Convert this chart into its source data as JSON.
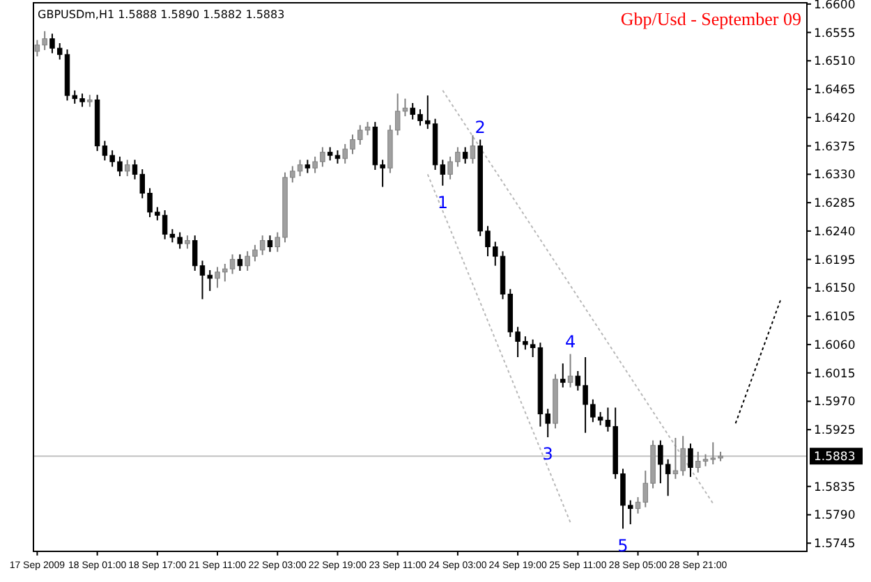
{
  "chart_data": {
    "type": "candlestick",
    "title": "Gbp/Usd - September 09",
    "annotations": [
      "GBPUSDm,H1 1.5888 1.5890 1.5882 1.5883",
      {
        "text": "1",
        "y": 1.6312
      },
      {
        "text": "2",
        "y": 1.6385
      },
      {
        "text": "3",
        "y": 1.5913
      },
      {
        "text": "4",
        "y": 1.6045
      },
      {
        "text": "5",
        "y": 1.5768
      }
    ],
    "categories": [
      "17 Sep 2009",
      null,
      null,
      null,
      null,
      null,
      null,
      null,
      "18 Sep 01:00",
      null,
      null,
      null,
      null,
      null,
      null,
      null,
      "18 Sep 17:00",
      null,
      null,
      null,
      null,
      null,
      null,
      null,
      "21 Sep 11:00",
      null,
      null,
      null,
      null,
      null,
      null,
      null,
      "22 Sep 03:00",
      null,
      null,
      null,
      null,
      null,
      null,
      null,
      "22 Sep 19:00",
      null,
      null,
      null,
      null,
      null,
      null,
      null,
      "23 Sep 11:00",
      null,
      null,
      null,
      null,
      null,
      null,
      null,
      "24 Sep 03:00",
      null,
      null,
      null,
      null,
      null,
      null,
      null,
      "24 Sep 19:00",
      null,
      null,
      null,
      null,
      null,
      null,
      null,
      "25 Sep 11:00",
      null,
      null,
      null,
      null,
      null,
      null,
      null,
      "28 Sep 05:00",
      null,
      null,
      null,
      null,
      null,
      null,
      null,
      "28 Sep 21:00",
      null,
      null,
      null,
      null,
      null,
      null,
      null,
      null,
      null,
      null,
      null,
      null,
      null,
      null
    ],
    "ohlc": [
      [
        1.6525,
        1.6543,
        1.6517,
        1.6535
      ],
      [
        1.6535,
        1.6557,
        1.6527,
        1.6545
      ],
      [
        1.6545,
        1.6553,
        1.6522,
        1.653
      ],
      [
        1.653,
        1.6538,
        1.6512,
        1.652
      ],
      [
        1.652,
        1.6528,
        1.6447,
        1.6455
      ],
      [
        1.6455,
        1.6463,
        1.6442,
        1.645
      ],
      [
        1.645,
        1.6458,
        1.6437,
        1.6445
      ],
      [
        1.6445,
        1.6456,
        1.6437,
        1.6448
      ],
      [
        1.6448,
        1.6456,
        1.6367,
        1.6375
      ],
      [
        1.6375,
        1.6383,
        1.6352,
        1.636
      ],
      [
        1.636,
        1.6368,
        1.6342,
        1.635
      ],
      [
        1.635,
        1.6358,
        1.6327,
        1.6335
      ],
      [
        1.6335,
        1.6353,
        1.6327,
        1.6345
      ],
      [
        1.6345,
        1.6353,
        1.6322,
        1.633
      ],
      [
        1.633,
        1.6338,
        1.6292,
        1.63
      ],
      [
        1.63,
        1.6308,
        1.6262,
        1.627
      ],
      [
        1.627,
        1.6278,
        1.6257,
        1.6265
      ],
      [
        1.6265,
        1.6273,
        1.6227,
        1.6235
      ],
      [
        1.6235,
        1.6243,
        1.6222,
        1.623
      ],
      [
        1.623,
        1.6238,
        1.6212,
        1.622
      ],
      [
        1.622,
        1.6233,
        1.6212,
        1.6225
      ],
      [
        1.6225,
        1.6233,
        1.6177,
        1.6185
      ],
      [
        1.6185,
        1.6193,
        1.6132,
        1.617
      ],
      [
        1.617,
        1.6178,
        1.6145,
        1.6165
      ],
      [
        1.6165,
        1.6183,
        1.615,
        1.6175
      ],
      [
        1.6175,
        1.6188,
        1.616,
        1.618
      ],
      [
        1.618,
        1.6203,
        1.6172,
        1.6195
      ],
      [
        1.6195,
        1.6203,
        1.6177,
        1.6185
      ],
      [
        1.6185,
        1.6208,
        1.6177,
        1.62
      ],
      [
        1.62,
        1.6218,
        1.6192,
        1.621
      ],
      [
        1.621,
        1.6233,
        1.6202,
        1.6225
      ],
      [
        1.6225,
        1.6233,
        1.6207,
        1.6215
      ],
      [
        1.6215,
        1.6238,
        1.6207,
        1.623
      ],
      [
        1.623,
        1.6333,
        1.6222,
        1.6325
      ],
      [
        1.6325,
        1.6343,
        1.6317,
        1.6335
      ],
      [
        1.6335,
        1.6353,
        1.6327,
        1.6345
      ],
      [
        1.6345,
        1.6353,
        1.6332,
        1.634
      ],
      [
        1.634,
        1.6358,
        1.6332,
        1.635
      ],
      [
        1.635,
        1.6373,
        1.6342,
        1.6365
      ],
      [
        1.6365,
        1.6373,
        1.6352,
        1.636
      ],
      [
        1.636,
        1.6368,
        1.6347,
        1.6355
      ],
      [
        1.6355,
        1.6378,
        1.6347,
        1.637
      ],
      [
        1.637,
        1.6393,
        1.6362,
        1.6385
      ],
      [
        1.6385,
        1.6408,
        1.6377,
        1.64
      ],
      [
        1.64,
        1.6413,
        1.6392,
        1.6405
      ],
      [
        1.6405,
        1.6413,
        1.6337,
        1.6345
      ],
      [
        1.6345,
        1.6353,
        1.631,
        1.634
      ],
      [
        1.634,
        1.6408,
        1.6332,
        1.64
      ],
      [
        1.64,
        1.6458,
        1.6392,
        1.643
      ],
      [
        1.643,
        1.645,
        1.6422,
        1.6435
      ],
      [
        1.6435,
        1.6443,
        1.6417,
        1.6425
      ],
      [
        1.6425,
        1.6433,
        1.6407,
        1.6415
      ],
      [
        1.6415,
        1.6455,
        1.6402,
        1.641
      ],
      [
        1.641,
        1.6418,
        1.6337,
        1.6345
      ],
      [
        1.6345,
        1.6353,
        1.6312,
        1.633
      ],
      [
        1.633,
        1.6358,
        1.6322,
        1.635
      ],
      [
        1.635,
        1.6373,
        1.6342,
        1.6365
      ],
      [
        1.6365,
        1.6373,
        1.6347,
        1.6355
      ],
      [
        1.6355,
        1.6392,
        1.6347,
        1.6375
      ],
      [
        1.6375,
        1.6385,
        1.6232,
        1.624
      ],
      [
        1.624,
        1.6248,
        1.62,
        1.6215
      ],
      [
        1.6215,
        1.6223,
        1.6185,
        1.62
      ],
      [
        1.62,
        1.6208,
        1.6132,
        1.614
      ],
      [
        1.614,
        1.6148,
        1.6072,
        1.608
      ],
      [
        1.608,
        1.6088,
        1.604,
        1.6065
      ],
      [
        1.6065,
        1.6073,
        1.6052,
        1.606
      ],
      [
        1.606,
        1.6068,
        1.604,
        1.6055
      ],
      [
        1.6055,
        1.6063,
        1.593,
        1.595
      ],
      [
        1.595,
        1.5958,
        1.5913,
        1.5935
      ],
      [
        1.5935,
        1.6013,
        1.5927,
        1.6005
      ],
      [
        1.6005,
        1.603,
        1.5992,
        1.6
      ],
      [
        1.6,
        1.6045,
        1.5992,
        1.601
      ],
      [
        1.601,
        1.6018,
        1.5987,
        1.5995
      ],
      [
        1.5995,
        1.604,
        1.592,
        1.5965
      ],
      [
        1.5965,
        1.5973,
        1.5937,
        1.5945
      ],
      [
        1.5945,
        1.5953,
        1.5932,
        1.594
      ],
      [
        1.594,
        1.596,
        1.5922,
        1.593
      ],
      [
        1.593,
        1.596,
        1.5847,
        1.5855
      ],
      [
        1.5855,
        1.5863,
        1.5768,
        1.5805
      ],
      [
        1.5805,
        1.5813,
        1.5775,
        1.58
      ],
      [
        1.58,
        1.5818,
        1.5792,
        1.581
      ],
      [
        1.581,
        1.586,
        1.5802,
        1.584
      ],
      [
        1.584,
        1.5908,
        1.5832,
        1.59
      ],
      [
        1.59,
        1.5908,
        1.584,
        1.587
      ],
      [
        1.587,
        1.5878,
        1.582,
        1.5855
      ],
      [
        1.5855,
        1.5912,
        1.5847,
        1.586
      ],
      [
        1.586,
        1.5915,
        1.5852,
        1.5895
      ],
      [
        1.5895,
        1.5903,
        1.585,
        1.5865
      ],
      [
        1.5865,
        1.589,
        1.5857,
        1.5875
      ],
      [
        1.5875,
        1.5886,
        1.5867,
        1.5878
      ],
      [
        1.5878,
        1.5905,
        1.587,
        1.588
      ],
      [
        1.588,
        1.589,
        1.5875,
        1.5883
      ],
      null,
      null,
      null,
      null,
      null,
      null,
      null,
      null,
      null,
      null,
      null
    ],
    "series": [
      {
        "type": "line",
        "color": "#b8b8b8",
        "line_style": "dotted",
        "values": [
          null,
          null,
          null,
          null,
          null,
          null,
          null,
          null,
          null,
          null,
          null,
          null,
          null,
          null,
          null,
          null,
          null,
          null,
          null,
          null,
          null,
          null,
          null,
          null,
          null,
          null,
          null,
          null,
          null,
          null,
          null,
          null,
          null,
          null,
          null,
          null,
          null,
          null,
          null,
          null,
          null,
          null,
          null,
          null,
          null,
          null,
          null,
          null,
          null,
          null,
          null,
          null,
          null,
          null,
          1.6463,
          null,
          null,
          null,
          null,
          null,
          null,
          null,
          null,
          null,
          null,
          null,
          null,
          null,
          null,
          null,
          null,
          null,
          null,
          null,
          null,
          null,
          null,
          null,
          null,
          null,
          null,
          null,
          null,
          null,
          null,
          null,
          null,
          null,
          null,
          null,
          1.5808,
          null,
          null,
          null,
          null,
          null,
          null,
          null,
          null,
          null,
          null,
          null,
          null
        ]
      },
      {
        "type": "line",
        "color": "#b8b8b8",
        "line_style": "dotted",
        "values": [
          null,
          null,
          null,
          null,
          null,
          null,
          null,
          null,
          null,
          null,
          null,
          null,
          null,
          null,
          null,
          null,
          null,
          null,
          null,
          null,
          null,
          null,
          null,
          null,
          null,
          null,
          null,
          null,
          null,
          null,
          null,
          null,
          null,
          null,
          null,
          null,
          null,
          null,
          null,
          null,
          null,
          null,
          null,
          null,
          null,
          null,
          null,
          null,
          null,
          null,
          null,
          null,
          1.633,
          null,
          null,
          null,
          null,
          null,
          null,
          null,
          null,
          null,
          null,
          null,
          null,
          null,
          null,
          null,
          null,
          null,
          null,
          1.5778,
          null,
          null,
          null,
          null,
          null,
          null,
          null,
          null,
          null,
          null,
          null,
          null,
          null,
          null,
          null,
          null,
          null,
          null,
          null,
          null,
          null,
          null,
          null,
          null,
          null,
          null,
          null,
          null,
          null,
          null,
          null
        ]
      },
      {
        "type": "line",
        "color": "#000000",
        "line_style": "dotted",
        "values": [
          null,
          null,
          null,
          null,
          null,
          null,
          null,
          null,
          null,
          null,
          null,
          null,
          null,
          null,
          null,
          null,
          null,
          null,
          null,
          null,
          null,
          null,
          null,
          null,
          null,
          null,
          null,
          null,
          null,
          null,
          null,
          null,
          null,
          null,
          null,
          null,
          null,
          null,
          null,
          null,
          null,
          null,
          null,
          null,
          null,
          null,
          null,
          null,
          null,
          null,
          null,
          null,
          null,
          null,
          null,
          null,
          null,
          null,
          null,
          null,
          null,
          null,
          null,
          null,
          null,
          null,
          null,
          null,
          null,
          null,
          null,
          null,
          null,
          null,
          null,
          null,
          null,
          null,
          null,
          null,
          null,
          null,
          null,
          null,
          null,
          null,
          null,
          null,
          null,
          null,
          null,
          null,
          null,
          1.5935,
          null,
          null,
          null,
          null,
          null,
          1.6131,
          null,
          null,
          null
        ]
      }
    ],
    "ref_lines": [
      {
        "axis": "y",
        "value": 1.5883,
        "label": "1.5883",
        "color": "#c0c0c0"
      }
    ],
    "ylim": [
      1.5732,
      1.6602
    ],
    "yticks": [
      {
        "value": 1.66,
        "label": "1.6600"
      },
      {
        "value": 1.6555,
        "label": "1.6555"
      },
      {
        "value": 1.651,
        "label": "1.6510"
      },
      {
        "value": 1.6465,
        "label": "1.6465"
      },
      {
        "value": 1.642,
        "label": "1.6420"
      },
      {
        "value": 1.6375,
        "label": "1.6375"
      },
      {
        "value": 1.633,
        "label": "1.6330"
      },
      {
        "value": 1.6285,
        "label": "1.6285"
      },
      {
        "value": 1.624,
        "label": "1.6240"
      },
      {
        "value": 1.6195,
        "label": "1.6195"
      },
      {
        "value": 1.615,
        "label": "1.6150"
      },
      {
        "value": 1.6105,
        "label": "1.6105"
      },
      {
        "value": 1.606,
        "label": "1.6060"
      },
      {
        "value": 1.6015,
        "label": "1.6015"
      },
      {
        "value": 1.597,
        "label": "1.5970"
      },
      {
        "value": 1.5925,
        "label": "1.5925"
      },
      {
        "value": 1.5835,
        "label": "1.5835"
      },
      {
        "value": 1.579,
        "label": "1.5790"
      },
      {
        "value": 1.5745,
        "label": "1.5745"
      }
    ],
    "grid": false
  }
}
